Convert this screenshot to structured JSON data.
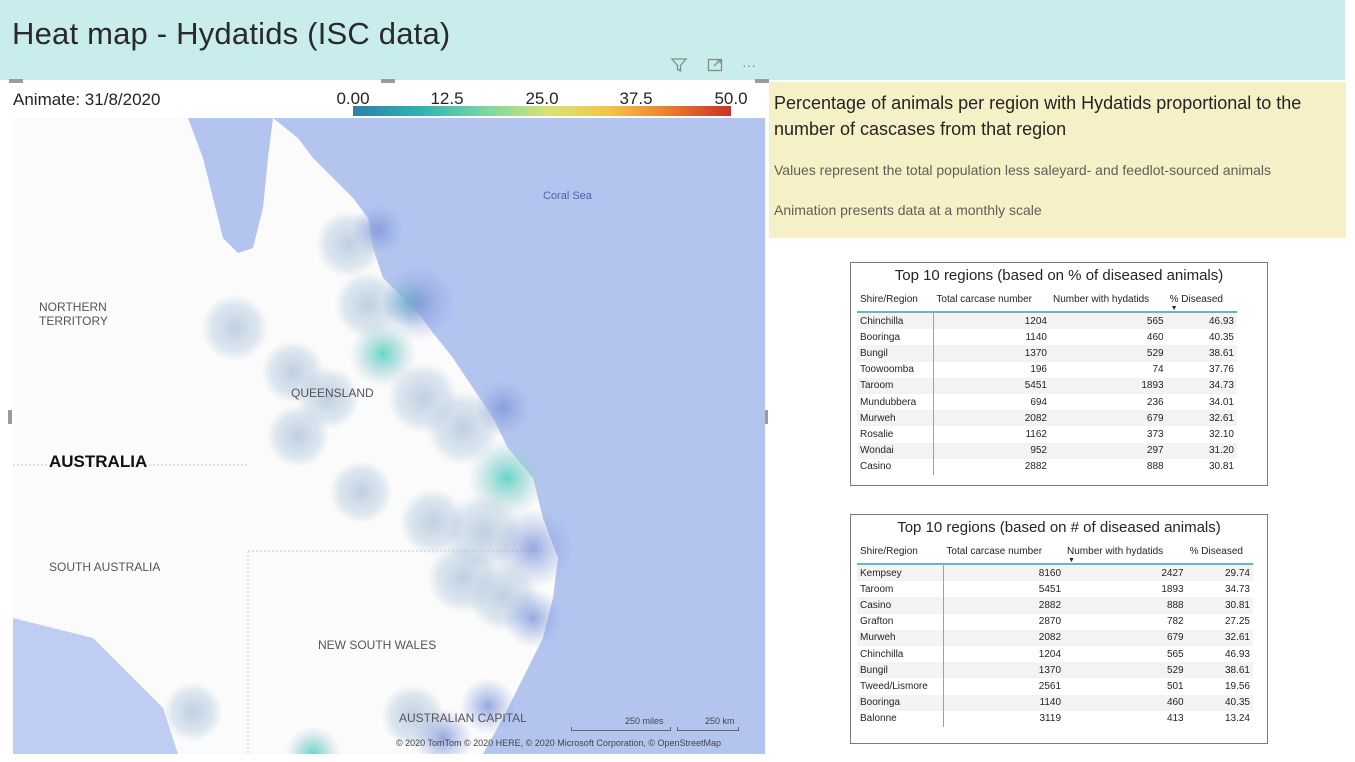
{
  "header": {
    "title": "Heat map - Hydatids (ISC data)"
  },
  "toolbar": {
    "filter_icon": "filter-icon",
    "focus_icon": "focus-mode-icon",
    "more_icon": "more-options-icon",
    "more_glyph": "···"
  },
  "map": {
    "animate_label": "Animate: 31/8/2020",
    "legend": {
      "ticks": [
        "0.00",
        "12.5",
        "25.0",
        "37.5",
        "50.0"
      ],
      "min": 0,
      "max": 50,
      "colors": [
        "#2f7fa8",
        "#2fb3b0",
        "#7bd6a6",
        "#d8e373",
        "#f3c34a",
        "#e97b2c",
        "#c9302c"
      ]
    },
    "labels": {
      "northern_territory": "NORTHERN TERRITORY",
      "queensland": "QUEENSLAND",
      "australia": "AUSTRALIA",
      "south_australia": "SOUTH AUSTRALIA",
      "new_south_wales": "NEW SOUTH WALES",
      "act": "AUSTRALIAN CAPITAL",
      "coral_sea": "Coral Sea"
    },
    "scale": {
      "miles": "250 miles",
      "km": "250 km"
    },
    "attribution": "© 2020 TomTom © 2020 HERE, © 2020 Microsoft Corporation, © OpenStreetMap",
    "ocean_color": "#b3c4ef",
    "land_color": "#fbfbfb"
  },
  "info": {
    "heading": "Percentage of animals per region with Hydatids proportional to the number of cascases from that region",
    "note1": "Values represent the total population less saleyard- and feedlot-sourced animals",
    "note2": "Animation presents data at a monthly scale"
  },
  "table1": {
    "title": "Top 10 regions (based on % of diseased animals)",
    "columns": [
      "Shire/Region",
      "Total carcase number",
      "Number with hydatids",
      "% Diseased"
    ],
    "rows": [
      [
        "Chinchilla",
        "1204",
        "565",
        "46.93"
      ],
      [
        "Booringa",
        "1140",
        "460",
        "40.35"
      ],
      [
        "Bungil",
        "1370",
        "529",
        "38.61"
      ],
      [
        "Toowoomba",
        "196",
        "74",
        "37.76"
      ],
      [
        "Taroom",
        "5451",
        "1893",
        "34.73"
      ],
      [
        "Mundubbera",
        "694",
        "236",
        "34.01"
      ],
      [
        "Murweh",
        "2082",
        "679",
        "32.61"
      ],
      [
        "Rosalie",
        "1162",
        "373",
        "32.10"
      ],
      [
        "Wondai",
        "952",
        "297",
        "31.20"
      ],
      [
        "Casino",
        "2882",
        "888",
        "30.81"
      ]
    ]
  },
  "table2": {
    "title": "Top 10 regions (based on # of diseased animals)",
    "columns": [
      "Shire/Region",
      "Total carcase number",
      "Number with hydatids",
      "% Diseased"
    ],
    "rows": [
      [
        "Kempsey",
        "8160",
        "2427",
        "29.74"
      ],
      [
        "Taroom",
        "5451",
        "1893",
        "34.73"
      ],
      [
        "Casino",
        "2882",
        "888",
        "30.81"
      ],
      [
        "Grafton",
        "2870",
        "782",
        "27.25"
      ],
      [
        "Murweh",
        "2082",
        "679",
        "32.61"
      ],
      [
        "Chinchilla",
        "1204",
        "565",
        "46.93"
      ],
      [
        "Bungil",
        "1370",
        "529",
        "38.61"
      ],
      [
        "Tweed/Lismore",
        "2561",
        "501",
        "19.56"
      ],
      [
        "Booringa",
        "1140",
        "460",
        "40.35"
      ],
      [
        "Balonne",
        "3119",
        "413",
        "13.24"
      ]
    ]
  }
}
